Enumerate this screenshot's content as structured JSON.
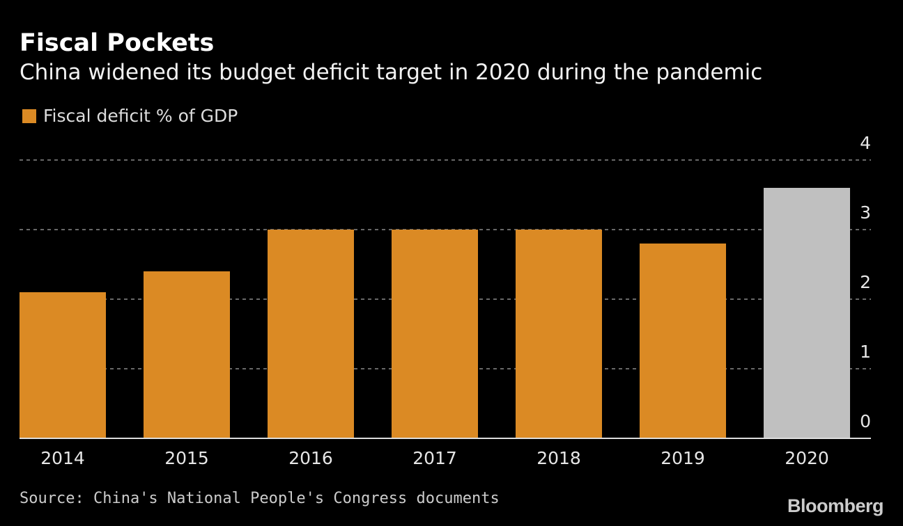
{
  "chart_data": {
    "type": "bar",
    "title": "Fiscal Pockets",
    "subtitle": "China widened its budget deficit target in 2020 during the pandemic",
    "legend": [
      {
        "name": "Fiscal deficit % of GDP",
        "color": "#db8a24"
      }
    ],
    "legend_placement": "top-left",
    "categories": [
      "2014",
      "2015",
      "2016",
      "2017",
      "2018",
      "2019",
      "2020"
    ],
    "series": [
      {
        "name": "Fiscal deficit % of GDP",
        "values": [
          2.1,
          2.4,
          3.0,
          3.0,
          3.0,
          2.8,
          3.6
        ]
      }
    ],
    "bar_colors": [
      "#db8a24",
      "#db8a24",
      "#db8a24",
      "#db8a24",
      "#db8a24",
      "#db8a24",
      "#c0c0c0"
    ],
    "ylim": [
      0,
      4
    ],
    "yticks": [
      "0",
      "1",
      "2",
      "3",
      "4"
    ],
    "y_axis_side": "right",
    "grid": true,
    "xlabel": "",
    "ylabel": "",
    "source": "Source: China's National People's Congress documents",
    "brand": "Bloomberg"
  }
}
